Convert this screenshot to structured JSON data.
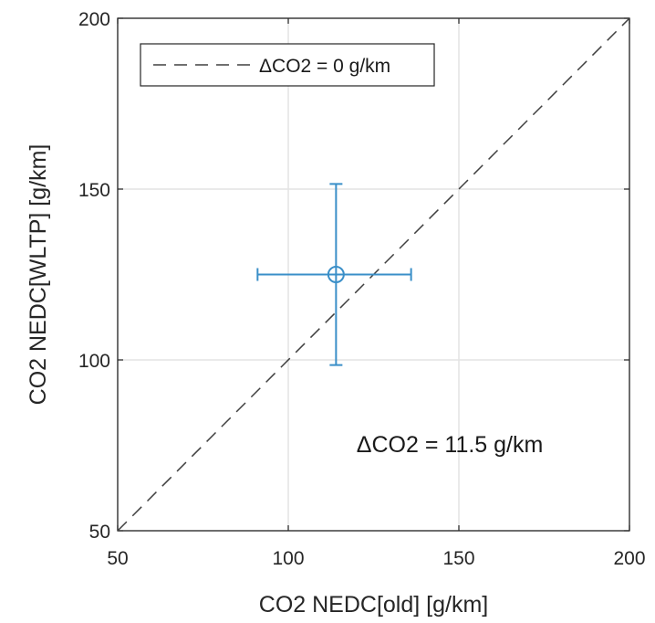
{
  "chart_data": {
    "type": "scatter",
    "xlabel": "CO2 NEDC[old] [g/km]",
    "ylabel": "CO2 NEDC[WLTP] [g/km]",
    "xlim": [
      50,
      200
    ],
    "ylim": [
      50,
      200
    ],
    "xticks": [
      "50",
      "100",
      "150",
      "200"
    ],
    "yticks": [
      "50",
      "100",
      "150",
      "200"
    ],
    "grid": true,
    "legend": {
      "placement": "top-left",
      "entries": [
        "ΔCO2 = 0 g/km"
      ]
    },
    "reference_line": {
      "style": "dashed",
      "color": "#404040",
      "points": [
        [
          50,
          50
        ],
        [
          200,
          200
        ]
      ]
    },
    "points": [
      {
        "x": 114,
        "y": 125,
        "x_err": [
          91,
          136
        ],
        "y_err": [
          98.5,
          151.5
        ],
        "marker": "circle"
      }
    ],
    "annotation": {
      "text": "ΔCO2 = 11.5 g/km",
      "x": 120,
      "y": 73
    },
    "colors": {
      "series": "#3a8fc8",
      "axes": "#262626",
      "grid": "#e3e3e3",
      "reference": "#404040"
    }
  }
}
